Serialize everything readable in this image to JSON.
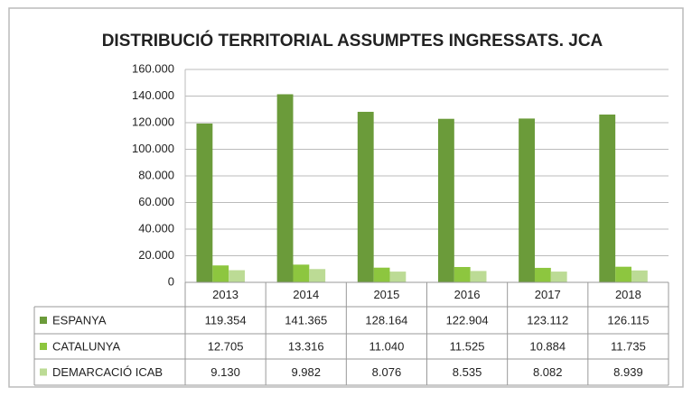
{
  "chart_data": {
    "type": "bar",
    "title": "DISTRIBUCIÓ TERRITORIAL ASSUMPTES INGRESSATS. JCA",
    "categories": [
      "2013",
      "2014",
      "2015",
      "2016",
      "2017",
      "2018"
    ],
    "series": [
      {
        "name": "ESPANYA",
        "color": "#6b9b3a",
        "values": [
          119354,
          141365,
          128164,
          122904,
          123112,
          126115
        ],
        "value_labels": [
          "119.354",
          "141.365",
          "128.164",
          "122.904",
          "123.112",
          "126.115"
        ]
      },
      {
        "name": "CATALUNYA",
        "color": "#8dc63f",
        "values": [
          12705,
          13316,
          11040,
          11525,
          10884,
          11735
        ],
        "value_labels": [
          "12.705",
          "13.316",
          "11.040",
          "11.525",
          "10.884",
          "11.735"
        ]
      },
      {
        "name": "DEMARCACIÓ ICAB",
        "color": "#bcdb95",
        "values": [
          9130,
          9982,
          8076,
          8535,
          8082,
          8939
        ],
        "value_labels": [
          "9.130",
          "9.982",
          "8.076",
          "8.535",
          "8.082",
          "8.939"
        ]
      }
    ],
    "ylim": [
      0,
      160000
    ],
    "yticks": [
      0,
      {
        "value": 20000,
        "label": "20.000"
      },
      {
        "value": 40000,
        "label": "40.000"
      },
      {
        "value": 60000,
        "label": "60.000"
      },
      {
        "value": 80000,
        "label": "80.000"
      },
      {
        "value": 100000,
        "label": "100.000"
      },
      {
        "value": 120000,
        "label": "120.000"
      },
      {
        "value": 140000,
        "label": "140.000"
      },
      {
        "value": 160000,
        "label": "160.000"
      }
    ],
    "grid": true
  }
}
